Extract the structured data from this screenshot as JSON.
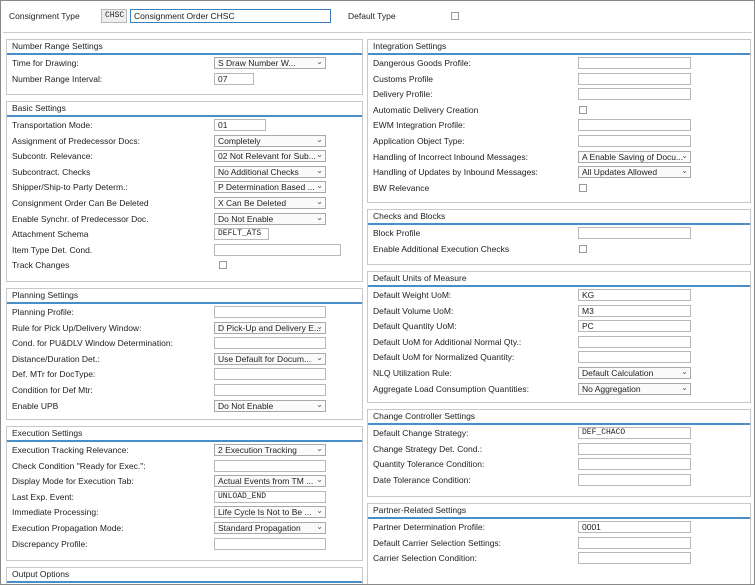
{
  "header": {
    "type_label": "Consignment Type",
    "type_code": "CHSC",
    "type_description": "Consignment Order CHSC",
    "default_type_label": "Default Type"
  },
  "left": [
    {
      "title": "Number Range Settings",
      "rows": [
        {
          "label": "Time for Drawing:",
          "value": "S Draw Number W...",
          "control": "dropdown"
        },
        {
          "label": "Number Range Interval:",
          "value": "07",
          "control": "input"
        }
      ]
    },
    {
      "title": "Basic Settings",
      "rows": [
        {
          "label": "Transportation Mode:",
          "value": "01",
          "control": "input"
        },
        {
          "label": "Assignment of Predecessor Docs:",
          "value": "Completely",
          "control": "dropdown"
        },
        {
          "label": "Subcontr. Relevance:",
          "value": "02 Not Relevant for Sub...",
          "control": "dropdown"
        },
        {
          "label": "Subcontract. Checks",
          "value": "No Additional Checks",
          "control": "dropdown"
        },
        {
          "label": "Shipper/Ship-to Party Determ.:",
          "value": "P Determination Based ...",
          "control": "dropdown"
        },
        {
          "label": "Consignment Order Can Be Deleted",
          "value": "X Can Be Deleted",
          "control": "dropdown"
        },
        {
          "label": "Enable Synchr. of Predecessor Doc.",
          "value": "Do Not Enable",
          "control": "dropdown"
        },
        {
          "label": "Attachment Schema",
          "value": "DEFLT_ATS",
          "control": "input"
        },
        {
          "label": "Item Type Det. Cond.",
          "control": "input"
        },
        {
          "label": "Track Changes",
          "control": "checkbox"
        }
      ]
    },
    {
      "title": "Planning Settings",
      "rows": [
        {
          "label": "Planning Profile:",
          "control": "input"
        },
        {
          "label": "Rule for Pick Up/Delivery Window:",
          "value": "D Pick-Up and Delivery E...",
          "control": "dropdown"
        },
        {
          "label": "Cond. for PU&DLV Window Determination:",
          "control": "input"
        },
        {
          "label": "Distance/Duration Det.:",
          "value": "Use Default for Docum...",
          "control": "dropdown"
        },
        {
          "label": "Def. MTr for DocType:",
          "control": "input"
        },
        {
          "label": "Condition for Def Mtr:",
          "control": "input"
        },
        {
          "label": "Enable UPB",
          "value": "Do Not Enable",
          "control": "dropdown"
        }
      ]
    },
    {
      "title": "Execution Settings",
      "rows": [
        {
          "label": "Execution Tracking Relevance:",
          "value": "2 Execution Tracking",
          "control": "dropdown"
        },
        {
          "label": "Check Condition \"Ready for Exec.\":",
          "control": "input"
        },
        {
          "label": "Display Mode for Execution Tab:",
          "value": "Actual Events from TM ...",
          "control": "dropdown"
        },
        {
          "label": "Last Exp. Event:",
          "value": "UNLOAD_END",
          "control": "input"
        },
        {
          "label": "Immediate Processing:",
          "value": "Life Cycle Is Not to Be ...",
          "control": "dropdown"
        },
        {
          "label": "Execution Propagation Mode:",
          "value": "Standard Propagation",
          "control": "dropdown"
        },
        {
          "label": "Discrepancy Profile:",
          "control": "input"
        }
      ]
    },
    {
      "title": "Output Options",
      "rows": []
    }
  ],
  "right": [
    {
      "title": "Integration Settings",
      "rows": [
        {
          "label": "Dangerous Goods Profile:",
          "control": "input"
        },
        {
          "label": "Customs Profile",
          "control": "input"
        },
        {
          "label": "Delivery Profile:",
          "control": "input"
        },
        {
          "label": "Automatic Delivery Creation",
          "control": "checkbox"
        },
        {
          "label": "EWM Integration Profile:",
          "control": "input"
        },
        {
          "label": "Application Object Type:",
          "control": "input"
        },
        {
          "label": "Handling of Incorrect Inbound Messages:",
          "value": "A Enable Saving of Docu...",
          "control": "dropdown"
        },
        {
          "label": "Handling of Updates by Inbound Messages:",
          "value": "All Updates Allowed",
          "control": "dropdown"
        },
        {
          "label": "BW Relevance",
          "control": "checkbox"
        }
      ]
    },
    {
      "title": "Checks and Blocks",
      "rows": [
        {
          "label": "Block Profile",
          "control": "input"
        },
        {
          "label": "Enable Additional Execution Checks",
          "control": "checkbox"
        }
      ]
    },
    {
      "title": "Default Units of Measure",
      "rows": [
        {
          "label": "Default Weight UoM:",
          "value": "KG",
          "control": "input"
        },
        {
          "label": "Default Volume UoM:",
          "value": "M3",
          "control": "input"
        },
        {
          "label": "Default Quantity UoM:",
          "value": "PC",
          "control": "input"
        },
        {
          "label": "Default UoM for Additional Normal Qty.:",
          "control": "input"
        },
        {
          "label": "Default UoM for Normalized Quantity:",
          "control": "input"
        },
        {
          "label": "NLQ Utilization Rule:",
          "value": "Default Calculation",
          "control": "dropdown"
        },
        {
          "label": "Aggregate Load Consumption Quantities:",
          "value": "No Aggregation",
          "control": "dropdown"
        }
      ]
    },
    {
      "title": "Change Controller Settings",
      "rows": [
        {
          "label": "Default Change Strategy:",
          "value": "DEF_CHACO",
          "control": "input"
        },
        {
          "label": "Change Strategy Det. Cond.:",
          "control": "input"
        },
        {
          "label": "Quantity Tolerance Condition:",
          "control": "input"
        },
        {
          "label": "Date Tolerance Condition:",
          "control": "input"
        }
      ]
    },
    {
      "title": "Partner-Related Settings",
      "rows": [
        {
          "label": "Partner Determination Profile:",
          "value": "0001",
          "control": "input"
        },
        {
          "label": "Default Carrier Selection Settings:",
          "control": "input"
        },
        {
          "label": "Carrier Selection Condition:",
          "control": "input"
        }
      ]
    }
  ]
}
